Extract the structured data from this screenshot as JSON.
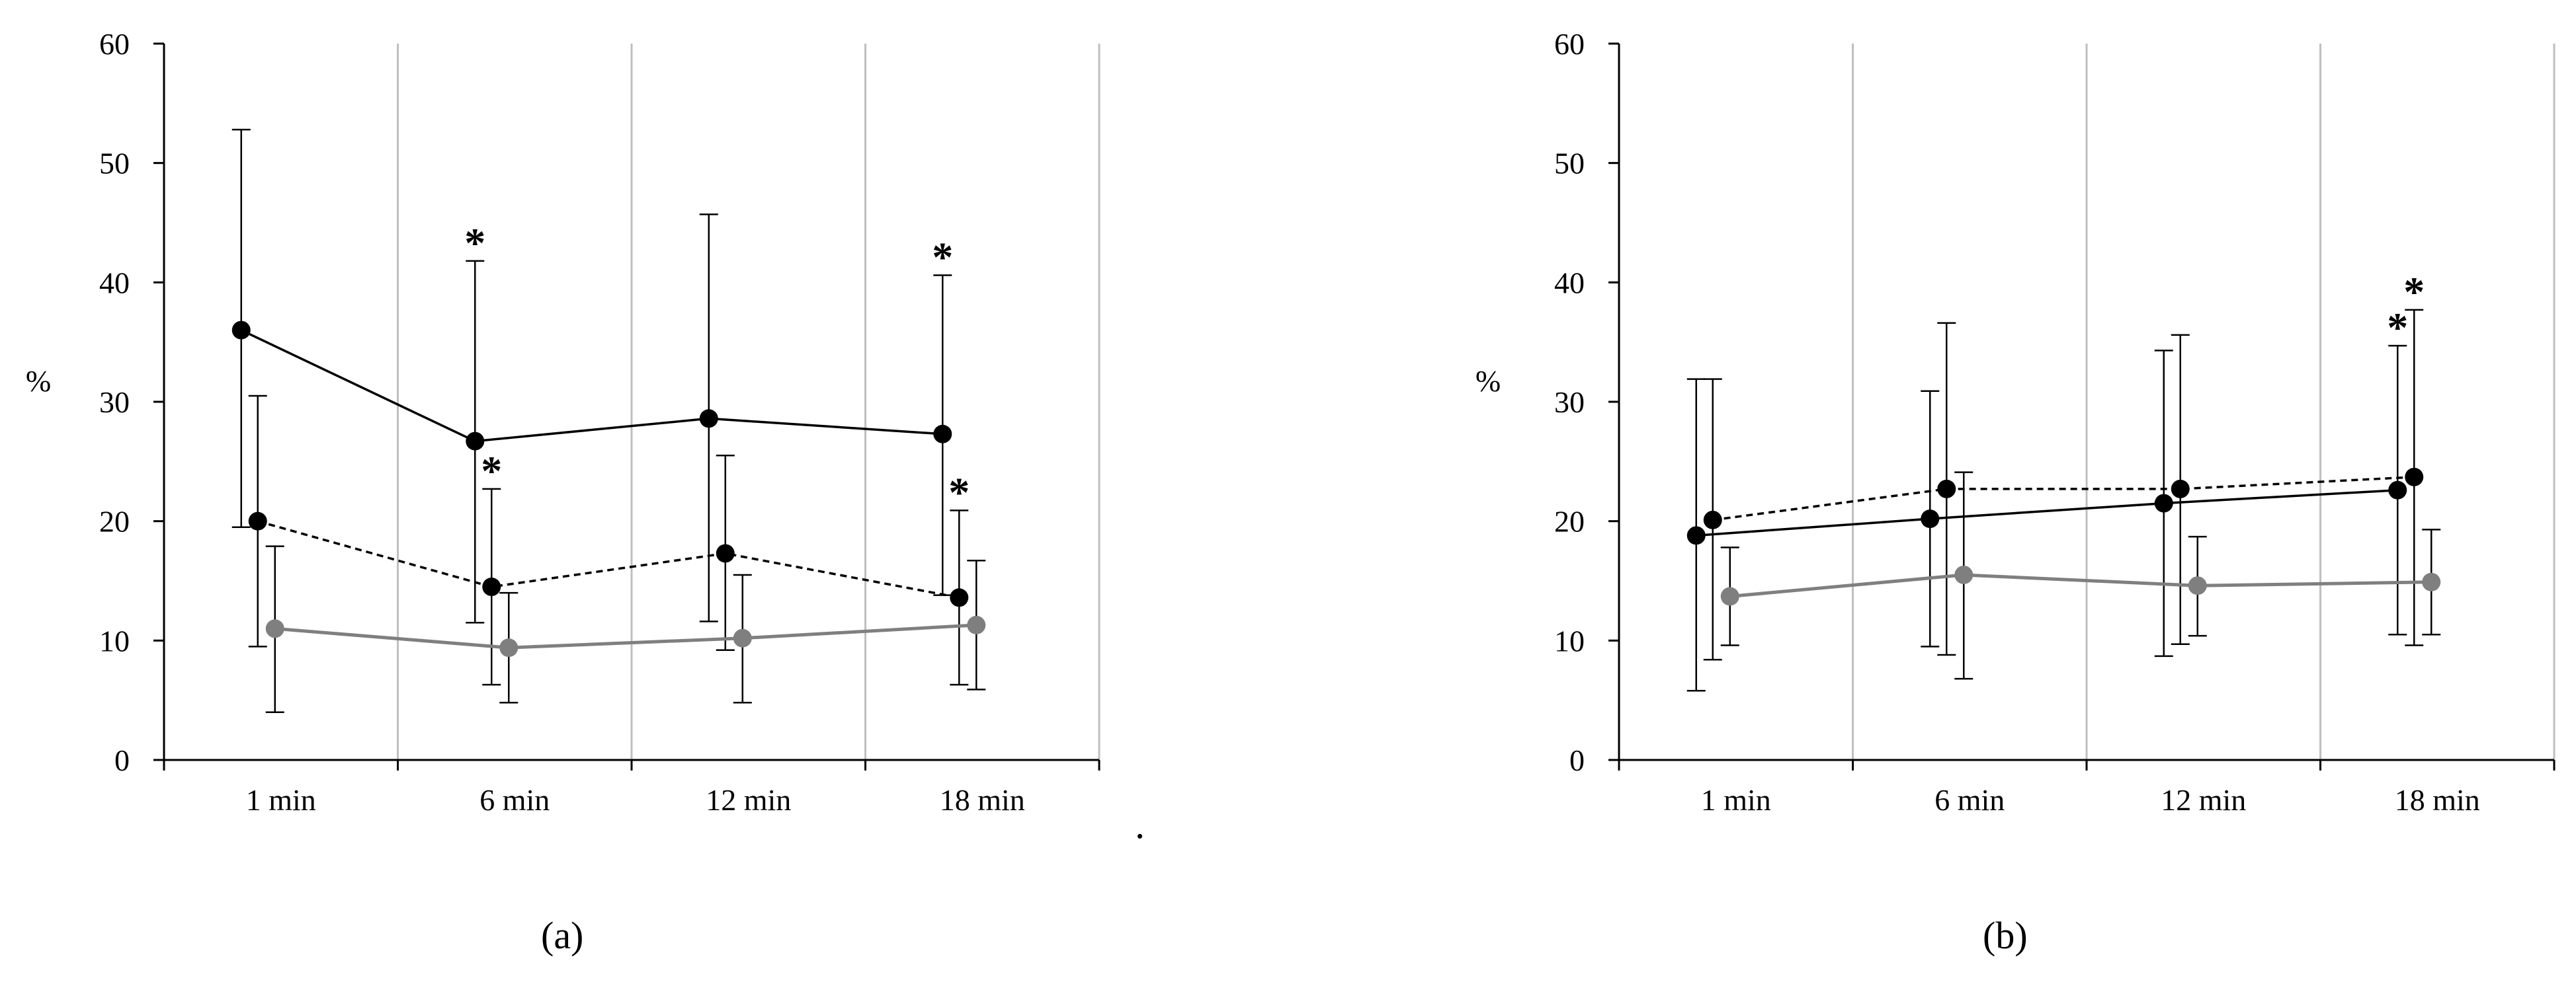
{
  "chart_data": [
    {
      "type": "line",
      "panel": "(a)",
      "ylabel": "%",
      "ylim": [
        0,
        60
      ],
      "yticks": [
        0,
        10,
        20,
        30,
        40,
        50,
        60
      ],
      "categories": [
        "1 min",
        "6 min",
        "12 min",
        "18 min"
      ],
      "grid": "vertical separators between categories",
      "series": [
        {
          "name": "solid black",
          "style": "solid",
          "color": "#000000",
          "values": [
            36.0,
            26.7,
            28.6,
            27.3
          ],
          "err_low": [
            19.5,
            11.5,
            11.6,
            13.8
          ],
          "err_high": [
            52.8,
            41.8,
            45.7,
            40.6
          ],
          "stars": [
            false,
            true,
            false,
            true
          ]
        },
        {
          "name": "dashed black",
          "style": "dashed",
          "color": "#000000",
          "values": [
            20.0,
            14.5,
            17.3,
            13.6
          ],
          "err_low": [
            9.5,
            6.3,
            9.2,
            6.3
          ],
          "err_high": [
            30.5,
            22.7,
            25.5,
            20.9
          ],
          "stars": [
            false,
            true,
            false,
            true
          ]
        },
        {
          "name": "solid gray",
          "style": "solid",
          "color": "#7f7f7f",
          "values": [
            11.0,
            9.4,
            10.2,
            11.3
          ],
          "err_low": [
            4.0,
            4.8,
            4.8,
            5.9
          ],
          "err_high": [
            17.9,
            14.0,
            15.5,
            16.7
          ],
          "stars": [
            false,
            false,
            false,
            false
          ]
        }
      ]
    },
    {
      "type": "line",
      "panel": "(b)",
      "ylabel": "%",
      "ylim": [
        0,
        60
      ],
      "yticks": [
        0,
        10,
        20,
        30,
        40,
        50,
        60
      ],
      "categories": [
        "1 min",
        "6 min",
        "12 min",
        "18 min"
      ],
      "grid": "vertical separators between categories",
      "series": [
        {
          "name": "solid black",
          "style": "solid",
          "color": "#000000",
          "values": [
            18.8,
            20.2,
            21.5,
            22.6
          ],
          "err_low": [
            5.8,
            9.5,
            8.7,
            10.5
          ],
          "err_high": [
            31.9,
            30.9,
            34.3,
            34.7
          ],
          "stars": [
            false,
            false,
            false,
            true
          ]
        },
        {
          "name": "dashed black",
          "style": "dashed",
          "color": "#000000",
          "values": [
            20.1,
            22.7,
            22.7,
            23.7
          ],
          "err_low": [
            8.4,
            8.8,
            9.7,
            9.6
          ],
          "err_high": [
            31.9,
            36.6,
            35.6,
            37.7
          ],
          "stars": [
            false,
            false,
            false,
            true
          ]
        },
        {
          "name": "solid gray",
          "style": "solid",
          "color": "#7f7f7f",
          "values": [
            13.7,
            15.5,
            14.6,
            14.9
          ],
          "err_low": [
            9.6,
            6.8,
            10.4,
            10.5
          ],
          "err_high": [
            17.8,
            24.1,
            18.7,
            19.3
          ],
          "stars": [
            false,
            false,
            false,
            false
          ]
        }
      ]
    }
  ],
  "star_symbol": "*",
  "stray_mark": "."
}
